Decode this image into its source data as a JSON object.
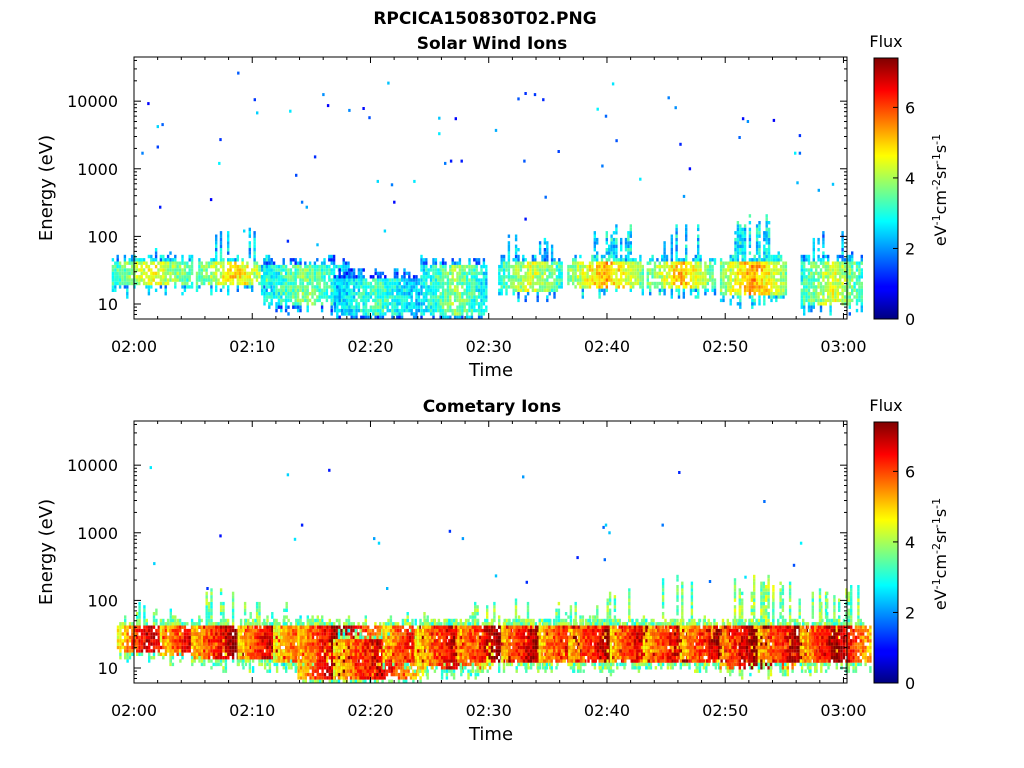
{
  "figure_title": "RPCICA150830T02.PNG",
  "chart_data": [
    {
      "type": "heatmap",
      "title": "Solar Wind Ions",
      "xlabel": "Time",
      "ylabel": "Energy (eV)",
      "x_ticks": [
        "02:00",
        "02:10",
        "02:20",
        "02:30",
        "02:40",
        "02:50",
        "03:00"
      ],
      "y_ticks": [
        "10",
        "100",
        "1000",
        "10000"
      ],
      "y_scale": "log",
      "ylim": [
        6,
        45000
      ],
      "xlim_minutes": [
        0,
        60.3
      ],
      "colorbar": {
        "title": "Flux",
        "label": "eV-1cm-2sr-1s-1",
        "range": [
          0,
          7.4
        ],
        "ticks": [
          "0",
          "2",
          "4",
          "6"
        ],
        "colormap": "jet"
      },
      "bursts": [
        {
          "t": 1.5,
          "e_low": 17,
          "e_high": 45,
          "level": 4.2,
          "tail_high": 80
        },
        {
          "t": 8.4,
          "e_low": 17,
          "e_high": 45,
          "level": 4.5,
          "tail_high": 140
        },
        {
          "t": 14.4,
          "e_low": 9,
          "e_high": 42,
          "level": 3.4,
          "tail_high": 40
        },
        {
          "t": 20.5,
          "e_low": 6,
          "e_high": 27,
          "level": 3.0,
          "tail_high": 27
        },
        {
          "t": 27.0,
          "e_low": 6,
          "e_high": 40,
          "level": 3.5,
          "tail_high": 40
        },
        {
          "t": 33.5,
          "e_low": 14,
          "e_high": 45,
          "level": 4.0,
          "tail_high": 100
        },
        {
          "t": 39.8,
          "e_low": 16,
          "e_high": 45,
          "level": 4.8,
          "tail_high": 140
        },
        {
          "t": 46.2,
          "e_low": 16,
          "e_high": 45,
          "level": 4.6,
          "tail_high": 150
        },
        {
          "t": 52.3,
          "e_low": 12,
          "e_high": 50,
          "level": 4.9,
          "tail_high": 220
        },
        {
          "t": 59.0,
          "e_low": 9,
          "e_high": 45,
          "level": 4.0,
          "tail_high": 120
        }
      ],
      "scatter": [
        [
          0.7,
          1700
        ],
        [
          1.2,
          9200
        ],
        [
          2.0,
          2100
        ],
        [
          2.0,
          4200
        ],
        [
          2.4,
          4500
        ],
        [
          2.2,
          270
        ],
        [
          6.5,
          350
        ],
        [
          7.2,
          1200
        ],
        [
          7.3,
          2700
        ],
        [
          8.8,
          26000
        ],
        [
          10.2,
          10500
        ],
        [
          10.4,
          6700
        ],
        [
          13.2,
          7100
        ],
        [
          13.7,
          800
        ],
        [
          14.2,
          320
        ],
        [
          14.6,
          270
        ],
        [
          15.3,
          1500
        ],
        [
          16.0,
          12500
        ],
        [
          16.4,
          8600
        ],
        [
          18.2,
          7300
        ],
        [
          19.4,
          7800
        ],
        [
          19.9,
          5700
        ],
        [
          20.6,
          650
        ],
        [
          21.5,
          18500
        ],
        [
          21.8,
          580
        ],
        [
          23.7,
          650
        ],
        [
          25.8,
          5600
        ],
        [
          25.8,
          3300
        ],
        [
          26.3,
          1200
        ],
        [
          26.8,
          1300
        ],
        [
          27.2,
          5500
        ],
        [
          27.7,
          1300
        ],
        [
          30.6,
          3700
        ],
        [
          32.5,
          10800
        ],
        [
          33.0,
          1300
        ],
        [
          33.1,
          13000
        ],
        [
          33.1,
          180
        ],
        [
          33.9,
          12500
        ],
        [
          34.6,
          10500
        ],
        [
          34.8,
          380
        ],
        [
          35.9,
          1800
        ],
        [
          39.2,
          7600
        ],
        [
          39.6,
          1100
        ],
        [
          39.9,
          6000
        ],
        [
          40.5,
          18000
        ],
        [
          40.8,
          2600
        ],
        [
          42.8,
          700
        ],
        [
          45.2,
          11200
        ],
        [
          45.8,
          8000
        ],
        [
          46.5,
          390
        ],
        [
          46.2,
          2300
        ],
        [
          47.0,
          1000
        ],
        [
          51.2,
          2900
        ],
        [
          51.5,
          5500
        ],
        [
          51.9,
          5000
        ],
        [
          54.1,
          5200
        ],
        [
          55.9,
          1700
        ],
        [
          56.3,
          1700
        ],
        [
          56.3,
          3100
        ],
        [
          56.1,
          620
        ],
        [
          57.9,
          480
        ],
        [
          59.1,
          590
        ],
        [
          15.5,
          75
        ],
        [
          13.0,
          85
        ],
        [
          21.2,
          120
        ],
        [
          22.0,
          320
        ],
        [
          9.3,
          120
        ]
      ]
    },
    {
      "type": "heatmap",
      "title": "Cometary Ions",
      "xlabel": "Time",
      "ylabel": "Energy (eV)",
      "x_ticks": [
        "02:00",
        "02:10",
        "02:20",
        "02:30",
        "02:40",
        "02:50",
        "03:00"
      ],
      "y_ticks": [
        "10",
        "100",
        "1000",
        "10000"
      ],
      "y_scale": "log",
      "ylim": [
        6,
        45000
      ],
      "xlim_minutes": [
        0,
        60.3
      ],
      "colorbar": {
        "title": "Flux",
        "label": "eV-1cm-2sr-1s-1",
        "range": [
          0,
          7.4
        ],
        "ticks": [
          "0",
          "2",
          "4",
          "6"
        ],
        "colormap": "jet"
      },
      "bursts": [
        {
          "t": 1.2,
          "e_low": 16,
          "e_high": 45,
          "level": 6.3,
          "tail_high": 100
        },
        {
          "t": 5.1,
          "e_low": 14,
          "e_high": 45,
          "level": 6.5,
          "tail_high": 60
        },
        {
          "t": 8.3,
          "e_low": 12,
          "e_high": 45,
          "level": 6.6,
          "tail_high": 150
        },
        {
          "t": 11.5,
          "e_low": 12,
          "e_high": 45,
          "level": 6.4,
          "tail_high": 90
        },
        {
          "t": 14.5,
          "e_low": 11,
          "e_high": 45,
          "level": 5.9,
          "tail_high": 60
        },
        {
          "t": 17.4,
          "e_low": 6,
          "e_high": 45,
          "level": 6.7,
          "tail_high": 60
        },
        {
          "t": 20.6,
          "e_low": 6,
          "e_high": 30,
          "level": 6.3,
          "tail_high": 30
        },
        {
          "t": 24.5,
          "e_low": 11,
          "e_high": 45,
          "level": 6.6,
          "tail_high": 70
        },
        {
          "t": 27.0,
          "e_low": 9,
          "e_high": 45,
          "level": 6.3,
          "tail_high": 45
        },
        {
          "t": 30.8,
          "e_low": 11,
          "e_high": 45,
          "level": 6.8,
          "tail_high": 100
        },
        {
          "t": 33.8,
          "e_low": 11,
          "e_high": 45,
          "level": 6.6,
          "tail_high": 60
        },
        {
          "t": 37.2,
          "e_low": 11,
          "e_high": 45,
          "level": 6.5,
          "tail_high": 90
        },
        {
          "t": 40.2,
          "e_low": 11,
          "e_high": 45,
          "level": 6.7,
          "tail_high": 150
        },
        {
          "t": 43.3,
          "e_low": 11,
          "e_high": 45,
          "level": 6.6,
          "tail_high": 60
        },
        {
          "t": 46.2,
          "e_low": 11,
          "e_high": 45,
          "level": 6.5,
          "tail_high": 260
        },
        {
          "t": 49.5,
          "e_low": 11,
          "e_high": 45,
          "level": 6.6,
          "tail_high": 50
        },
        {
          "t": 52.7,
          "e_low": 9,
          "e_high": 45,
          "level": 7.0,
          "tail_high": 240
        },
        {
          "t": 56.2,
          "e_low": 11,
          "e_high": 45,
          "level": 6.7,
          "tail_high": 180
        },
        {
          "t": 59.3,
          "e_low": 11,
          "e_high": 45,
          "level": 6.6,
          "tail_high": 200
        }
      ],
      "scatter": [
        [
          1.4,
          9200
        ],
        [
          1.7,
          350
        ],
        [
          7.3,
          900
        ],
        [
          13.0,
          7200
        ],
        [
          13.6,
          800
        ],
        [
          14.2,
          1300
        ],
        [
          16.5,
          8400
        ],
        [
          20.3,
          820
        ],
        [
          20.7,
          700
        ],
        [
          26.7,
          1050
        ],
        [
          27.8,
          820
        ],
        [
          30.6,
          230
        ],
        [
          32.9,
          6700
        ],
        [
          33.2,
          185
        ],
        [
          37.5,
          430
        ],
        [
          39.7,
          1200
        ],
        [
          39.9,
          1300
        ],
        [
          40.2,
          1000
        ],
        [
          39.8,
          400
        ],
        [
          44.7,
          1300
        ],
        [
          46.1,
          7800
        ],
        [
          48.7,
          190
        ],
        [
          51.7,
          220
        ],
        [
          53.3,
          2900
        ],
        [
          55.8,
          330
        ],
        [
          56.4,
          700
        ],
        [
          21.4,
          150
        ],
        [
          6.2,
          150
        ]
      ]
    }
  ]
}
